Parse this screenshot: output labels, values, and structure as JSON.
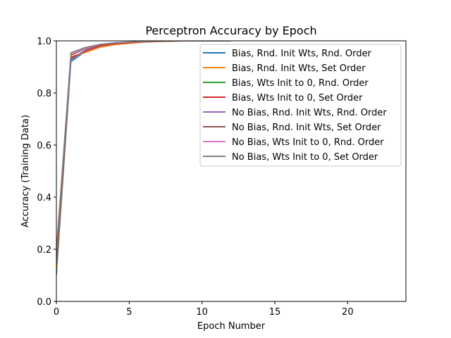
{
  "chart_data": {
    "type": "line",
    "title": "Perceptron Accuracy by Epoch",
    "xlabel": "Epoch Number",
    "ylabel": "Accuracy (Training Data)",
    "xlim": [
      0,
      24
    ],
    "ylim": [
      0.0,
      1.0
    ],
    "xticks": [
      0,
      5,
      10,
      15,
      20
    ],
    "yticks": [
      0.0,
      0.2,
      0.4,
      0.6,
      0.8,
      1.0
    ],
    "xtick_labels": [
      "0",
      "5",
      "10",
      "15",
      "20"
    ],
    "ytick_labels": [
      "0.0",
      "0.2",
      "0.4",
      "0.6",
      "0.8",
      "1.0"
    ],
    "grid": false,
    "legend_position": "upper-right",
    "x": [
      0,
      1,
      2,
      3,
      4,
      5,
      6,
      7,
      8,
      9,
      10,
      11,
      12
    ],
    "series": [
      {
        "name": "Bias, Rnd. Init Wts, Rnd. Order",
        "color": "#1f77b4",
        "values": [
          0.1,
          0.92,
          0.96,
          0.98,
          0.99,
          0.993,
          0.996,
          0.998,
          0.999,
          1.0,
          1.0,
          1.0,
          1.0
        ]
      },
      {
        "name": "Bias, Rnd. Init Wts, Set Order",
        "color": "#ff7f0e",
        "values": [
          0.12,
          0.94,
          0.955,
          0.975,
          0.985,
          0.99,
          0.995,
          0.997,
          0.999,
          1.0,
          1.0,
          1.0,
          1.0
        ]
      },
      {
        "name": "Bias, Wts Init to 0, Rnd. Order",
        "color": "#2ca02c",
        "values": [
          0.15,
          0.93,
          0.965,
          0.982,
          0.99,
          0.994,
          0.997,
          0.998,
          0.999,
          1.0,
          1.0,
          1.0,
          1.0
        ]
      },
      {
        "name": "Bias, Wts Init to 0, Set Order",
        "color": "#d62728",
        "values": [
          0.16,
          0.935,
          0.96,
          0.98,
          0.988,
          0.993,
          0.996,
          0.998,
          0.999,
          1.0,
          1.0,
          1.0,
          1.0
        ]
      },
      {
        "name": "No Bias, Rnd. Init Wts, Rnd. Order",
        "color": "#9467bd",
        "values": [
          0.18,
          0.925,
          0.965,
          0.985,
          0.992,
          0.995,
          0.997,
          0.999,
          1.0,
          1.0,
          1.0,
          1.0,
          1.0
        ]
      },
      {
        "name": "No Bias, Rnd. Init Wts, Set Order",
        "color": "#8c564b",
        "values": [
          0.14,
          0.945,
          0.97,
          0.984,
          0.99,
          0.994,
          0.997,
          0.998,
          0.999,
          1.0,
          1.0,
          1.0,
          1.0
        ]
      },
      {
        "name": "No Bias, Wts Init to 0, Rnd. Order",
        "color": "#e377c2",
        "values": [
          0.2,
          0.95,
          0.972,
          0.986,
          0.992,
          0.995,
          0.997,
          0.999,
          1.0,
          1.0,
          1.0,
          1.0,
          1.0
        ]
      },
      {
        "name": "No Bias, Wts Init to 0, Set Order",
        "color": "#7f7f7f",
        "values": [
          0.19,
          0.955,
          0.975,
          0.987,
          0.993,
          0.996,
          0.998,
          0.999,
          1.0,
          1.0,
          1.0,
          1.0,
          1.0
        ]
      }
    ]
  }
}
